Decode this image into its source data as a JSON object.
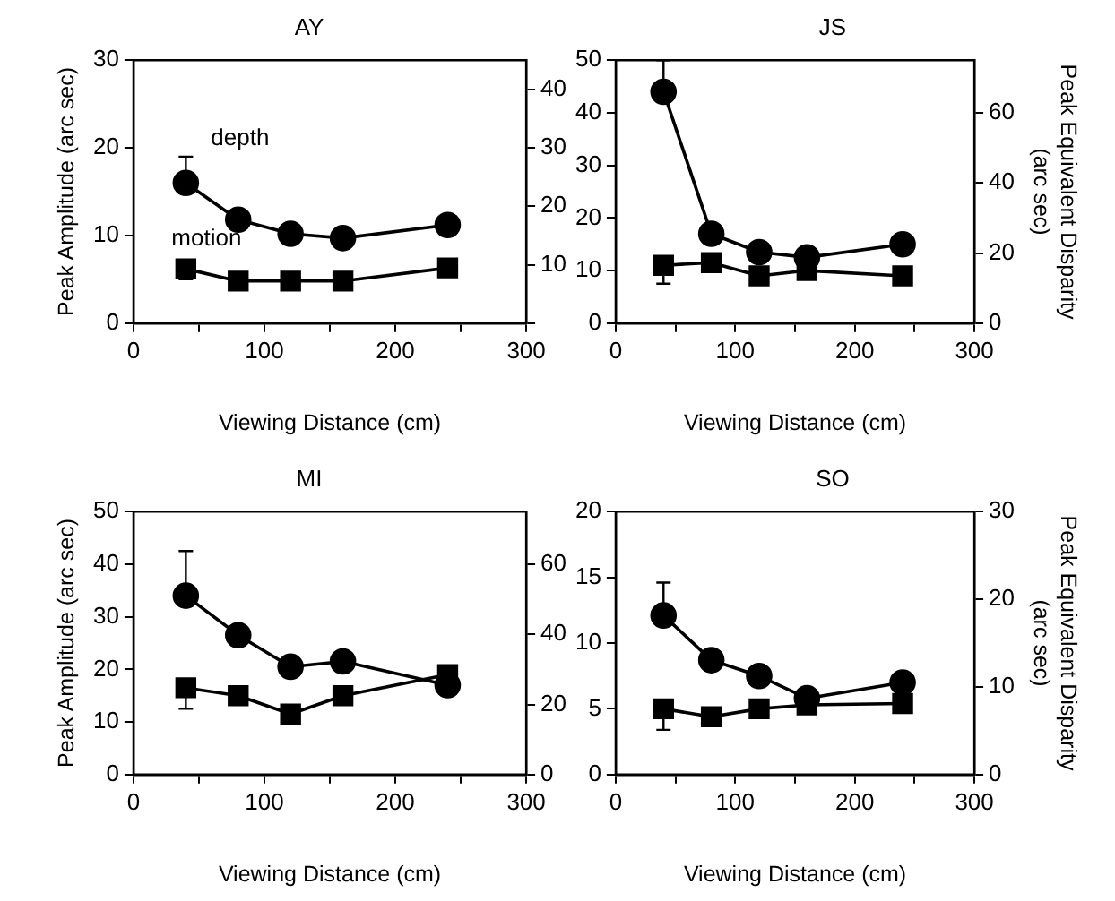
{
  "chart_data": [
    {
      "type": "line",
      "title": "AY",
      "xlabel": "Viewing Distance (cm)",
      "ylabel": "Peak Amplitude (arc sec)",
      "x": [
        40,
        80,
        120,
        160,
        240
      ],
      "xlim": [
        0,
        300
      ],
      "xticks": [
        0,
        {
          "value": 50,
          "label": null
        },
        100,
        {
          "value": 150,
          "label": null
        },
        200,
        {
          "value": 250,
          "label": null
        },
        300
      ],
      "ylim": [
        0,
        30
      ],
      "yticks": [
        0,
        10,
        20,
        30
      ],
      "y2lim": [
        0,
        45
      ],
      "y2ticks": [
        {
          "value": 0,
          "label": null
        },
        10,
        20,
        30,
        40
      ],
      "grid": false,
      "legend": false,
      "line_style": "solid",
      "series": [
        {
          "name": "depth",
          "color": "#000000",
          "marker": "circle",
          "values": [
            16,
            11.8,
            10.2,
            9.7,
            11.2
          ],
          "errors": [
            [
              16,
              19
            ],
            null,
            null,
            null,
            null
          ]
        },
        {
          "name": "motion",
          "color": "#000000",
          "marker": "square",
          "values": [
            6.2,
            4.8,
            4.8,
            4.8,
            6.3
          ],
          "errors": [
            [
              5,
              6.2
            ],
            null,
            null,
            null,
            null
          ]
        }
      ]
    },
    {
      "type": "line",
      "title": "JS",
      "xlabel": "Viewing Distance (cm)",
      "y2label": "Peak Equivalent Disparity\n(arc sec)",
      "x": [
        40,
        80,
        120,
        160,
        240
      ],
      "xlim": [
        0,
        300
      ],
      "xticks": [
        0,
        {
          "value": 50,
          "label": null
        },
        100,
        {
          "value": 150,
          "label": null
        },
        200,
        {
          "value": 250,
          "label": null
        },
        300
      ],
      "ylim": [
        0,
        50
      ],
      "yticks": [
        0,
        10,
        20,
        30,
        40,
        50
      ],
      "y2lim": [
        0,
        75
      ],
      "y2ticks": [
        0,
        20,
        40,
        60
      ],
      "grid": false,
      "legend": false,
      "line_style": "solid",
      "series": [
        {
          "color": "#000000",
          "marker": "circle",
          "values": [
            44,
            17,
            13.5,
            12.5,
            15
          ],
          "errors": [
            [
              44,
              50
            ],
            null,
            null,
            null,
            null
          ]
        },
        {
          "color": "#000000",
          "marker": "square",
          "values": [
            11,
            11.5,
            9,
            10,
            9
          ],
          "errors": [
            [
              7.5,
              11
            ],
            null,
            null,
            null,
            null
          ]
        }
      ]
    },
    {
      "type": "line",
      "title": "MI",
      "xlabel": "Viewing Distance (cm)",
      "ylabel": "Peak Amplitude (arc sec)",
      "x": [
        40,
        80,
        120,
        160,
        240
      ],
      "xlim": [
        0,
        300
      ],
      "xticks": [
        0,
        {
          "value": 50,
          "label": null
        },
        100,
        {
          "value": 150,
          "label": null
        },
        200,
        {
          "value": 250,
          "label": null
        },
        300
      ],
      "ylim": [
        0,
        50
      ],
      "yticks": [
        0,
        10,
        20,
        30,
        40,
        50
      ],
      "y2lim": [
        0,
        75
      ],
      "y2ticks": [
        0,
        20,
        40,
        60
      ],
      "grid": false,
      "legend": false,
      "line_style": "solid",
      "series": [
        {
          "color": "#000000",
          "marker": "circle",
          "values": [
            34,
            26.5,
            20.5,
            21.5,
            17
          ],
          "errors": [
            [
              34,
              42.5
            ],
            null,
            null,
            null,
            null
          ]
        },
        {
          "color": "#000000",
          "marker": "square",
          "values": [
            16.5,
            15,
            11.5,
            15,
            19
          ],
          "errors": [
            [
              12.5,
              16.5
            ],
            null,
            null,
            null,
            null
          ]
        }
      ]
    },
    {
      "type": "line",
      "title": "SO",
      "xlabel": "Viewing Distance (cm)",
      "y2label": "Peak Equivalent Disparity\n(arc sec)",
      "x": [
        40,
        80,
        120,
        160,
        240
      ],
      "xlim": [
        0,
        300
      ],
      "xticks": [
        0,
        {
          "value": 50,
          "label": null
        },
        100,
        {
          "value": 150,
          "label": null
        },
        200,
        {
          "value": 250,
          "label": null
        },
        300
      ],
      "ylim": [
        0,
        20
      ],
      "yticks": [
        0,
        5,
        10,
        15,
        20
      ],
      "y2lim": [
        0,
        30
      ],
      "y2ticks": [
        0,
        10,
        20,
        30
      ],
      "grid": false,
      "legend": false,
      "line_style": "solid",
      "series": [
        {
          "color": "#000000",
          "marker": "circle",
          "values": [
            12.1,
            8.7,
            7.5,
            5.8,
            7
          ],
          "errors": [
            [
              12.1,
              14.6
            ],
            null,
            null,
            null,
            null
          ]
        },
        {
          "color": "#000000",
          "marker": "square",
          "values": [
            5,
            4.4,
            5,
            5.3,
            5.4
          ],
          "errors": [
            [
              3.4,
              5
            ],
            null,
            null,
            null,
            null
          ]
        }
      ]
    }
  ]
}
